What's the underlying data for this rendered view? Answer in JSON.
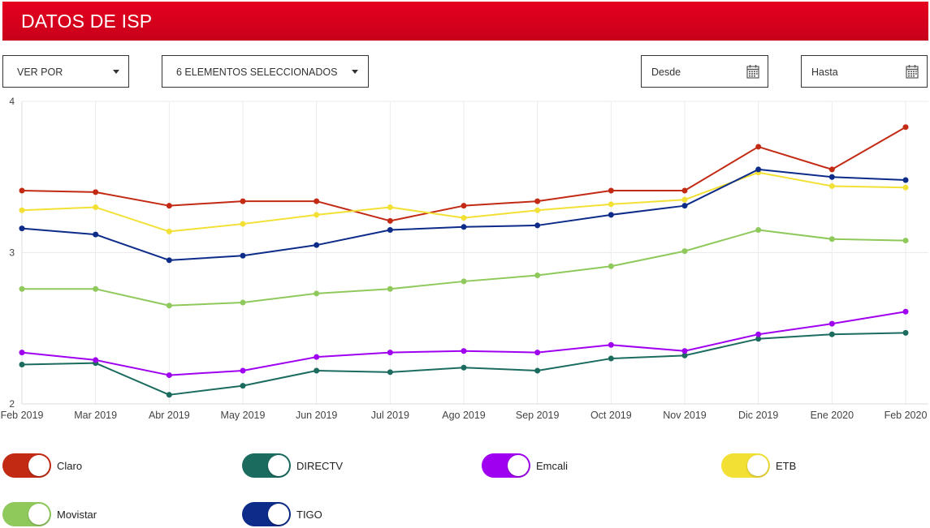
{
  "header": {
    "title": "DATOS DE ISP",
    "color": "#d50020"
  },
  "filters": {
    "ver_por": "VER POR",
    "elementos": "6 ELEMENTOS SELECCIONADOS",
    "desde_placeholder": "Desde",
    "hasta_placeholder": "Hasta"
  },
  "icons": {
    "dropdown": "chevron-down-icon",
    "date": "calendar-icon"
  },
  "chart_data": {
    "type": "line",
    "x": [
      "Feb 2019",
      "Mar 2019",
      "Abr 2019",
      "May 2019",
      "Jun 2019",
      "Jul 2019",
      "Ago 2019",
      "Sep 2019",
      "Oct 2019",
      "Nov 2019",
      "Dic 2019",
      "Ene 2020",
      "Feb 2020"
    ],
    "yticks": [
      "2",
      "3",
      "4"
    ],
    "ylim": [
      2,
      4
    ],
    "grid": true,
    "series": [
      {
        "name": "Claro",
        "color": "#c32a14",
        "values": [
          3.41,
          3.4,
          3.31,
          3.34,
          3.34,
          3.21,
          3.31,
          3.34,
          3.41,
          3.41,
          3.7,
          3.55,
          3.83
        ]
      },
      {
        "name": "DIRECTV",
        "color": "#1b6b5f",
        "values": [
          2.26,
          2.27,
          2.06,
          2.12,
          2.22,
          2.21,
          2.24,
          2.22,
          2.3,
          2.32,
          2.43,
          2.46,
          2.47
        ]
      },
      {
        "name": "Emcali",
        "color": "#a000f0",
        "values": [
          2.34,
          2.29,
          2.19,
          2.22,
          2.31,
          2.34,
          2.35,
          2.34,
          2.39,
          2.35,
          2.46,
          2.53,
          2.61
        ]
      },
      {
        "name": "ETB",
        "color": "#f3e035",
        "values": [
          3.28,
          3.3,
          3.14,
          3.19,
          3.25,
          3.3,
          3.23,
          3.28,
          3.32,
          3.35,
          3.53,
          3.44,
          3.43
        ]
      },
      {
        "name": "Movistar",
        "color": "#8fc95c",
        "values": [
          2.76,
          2.76,
          2.65,
          2.67,
          2.73,
          2.76,
          2.81,
          2.85,
          2.91,
          3.01,
          3.15,
          3.09,
          3.08
        ]
      },
      {
        "name": "TIGO",
        "color": "#0d2b88",
        "values": [
          3.16,
          3.12,
          2.95,
          2.98,
          3.05,
          3.15,
          3.17,
          3.18,
          3.25,
          3.31,
          3.55,
          3.5,
          3.48
        ]
      }
    ]
  }
}
